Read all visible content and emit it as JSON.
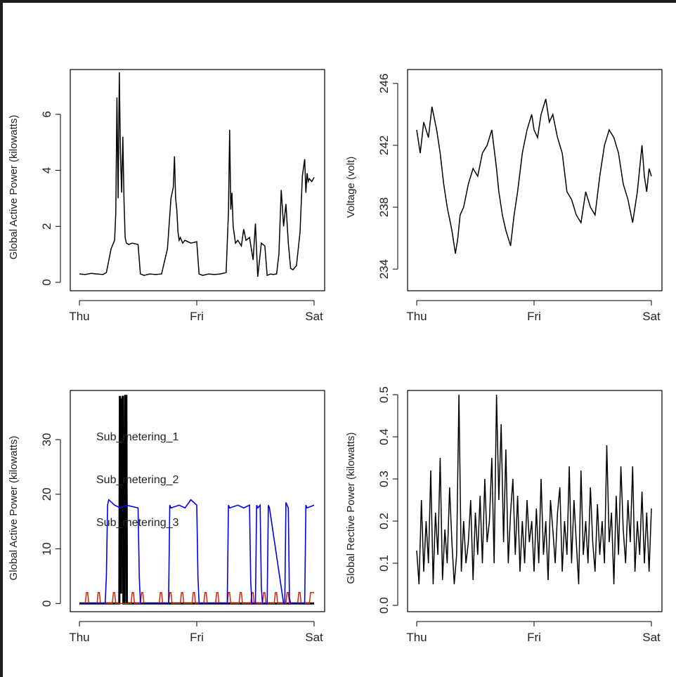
{
  "chart_data": [
    {
      "id": "p1",
      "type": "line",
      "title": "",
      "ylabel": "Global Active Power (kilowatts)",
      "xlabel": "",
      "x_ticks": [
        "Thu",
        "Fri",
        "Sat"
      ],
      "x_range": [
        0,
        2
      ],
      "ylim": [
        -0.3,
        7.6
      ],
      "y_ticks": [
        0,
        2,
        4,
        6
      ],
      "series": [
        {
          "name": "Global_active_power",
          "color": "#000000",
          "x": [
            0.0,
            0.05,
            0.1,
            0.15,
            0.2,
            0.23,
            0.27,
            0.3,
            0.31,
            0.32,
            0.33,
            0.34,
            0.35,
            0.36,
            0.37,
            0.38,
            0.39,
            0.4,
            0.42,
            0.45,
            0.5,
            0.52,
            0.55,
            0.6,
            0.65,
            0.7,
            0.75,
            0.78,
            0.8,
            0.81,
            0.82,
            0.83,
            0.84,
            0.85,
            0.86,
            0.88,
            0.9,
            0.95,
            1.0,
            1.02,
            1.05,
            1.1,
            1.15,
            1.2,
            1.25,
            1.27,
            1.28,
            1.29,
            1.3,
            1.31,
            1.33,
            1.35,
            1.38,
            1.4,
            1.42,
            1.45,
            1.48,
            1.5,
            1.52,
            1.55,
            1.58,
            1.6,
            1.63,
            1.65,
            1.68,
            1.7,
            1.72,
            1.74,
            1.76,
            1.78,
            1.8,
            1.82,
            1.85,
            1.88,
            1.9,
            1.92,
            1.93,
            1.94,
            1.95,
            1.96,
            1.98,
            2.0
          ],
          "y": [
            0.3,
            0.28,
            0.32,
            0.3,
            0.28,
            0.35,
            1.2,
            1.5,
            2.5,
            6.6,
            3.0,
            7.5,
            4.6,
            3.2,
            5.2,
            2.9,
            1.6,
            1.4,
            1.35,
            1.4,
            1.35,
            0.3,
            0.25,
            0.3,
            0.28,
            0.3,
            1.2,
            3.0,
            3.4,
            4.5,
            3.0,
            2.6,
            1.8,
            1.5,
            1.6,
            1.4,
            1.5,
            1.4,
            1.45,
            0.3,
            0.25,
            0.3,
            0.28,
            0.3,
            0.35,
            2.5,
            5.45,
            2.6,
            3.2,
            2.0,
            1.4,
            1.5,
            1.3,
            1.9,
            1.5,
            1.6,
            0.8,
            2.1,
            0.2,
            1.4,
            1.3,
            0.25,
            0.3,
            0.28,
            0.3,
            1.0,
            3.3,
            2.0,
            2.8,
            1.4,
            0.5,
            0.45,
            0.6,
            1.8,
            3.8,
            4.4,
            3.2,
            3.9,
            3.6,
            3.7,
            3.6,
            3.75
          ]
        }
      ]
    },
    {
      "id": "p2",
      "type": "line",
      "title": "",
      "ylabel": "Voltage (volt)",
      "xlabel": "",
      "x_ticks": [
        "Thu",
        "Fri",
        "Sat"
      ],
      "x_range": [
        0,
        2
      ],
      "ylim": [
        232.6,
        246.9
      ],
      "y_ticks": [
        234,
        238,
        242,
        246
      ],
      "series": [
        {
          "name": "Voltage",
          "color": "#000000",
          "x": [
            0.0,
            0.03,
            0.06,
            0.1,
            0.13,
            0.17,
            0.2,
            0.23,
            0.26,
            0.3,
            0.33,
            0.35,
            0.37,
            0.4,
            0.44,
            0.48,
            0.52,
            0.56,
            0.6,
            0.64,
            0.68,
            0.7,
            0.73,
            0.76,
            0.8,
            0.83,
            0.86,
            0.9,
            0.94,
            0.98,
            1.0,
            1.03,
            1.06,
            1.1,
            1.13,
            1.16,
            1.2,
            1.24,
            1.28,
            1.32,
            1.36,
            1.4,
            1.44,
            1.48,
            1.52,
            1.56,
            1.6,
            1.64,
            1.68,
            1.72,
            1.76,
            1.8,
            1.84,
            1.88,
            1.9,
            1.92,
            1.94,
            1.96,
            1.98,
            2.0
          ],
          "y": [
            243,
            241.5,
            243.5,
            242.5,
            244.5,
            243,
            241.5,
            239.5,
            238,
            236.5,
            235,
            236,
            237.5,
            238,
            239.5,
            240.5,
            240,
            241.5,
            242,
            243,
            240.5,
            239,
            237.5,
            236.5,
            235.5,
            237.5,
            239,
            241.5,
            243,
            244,
            243,
            242.5,
            244,
            245,
            243.5,
            244,
            242.5,
            241.5,
            239,
            238.5,
            237.5,
            237,
            239,
            238,
            237.5,
            240,
            242,
            243,
            242.5,
            241.5,
            239.5,
            238.5,
            237,
            239,
            240.5,
            242,
            240,
            239,
            240.5,
            240
          ]
        }
      ]
    },
    {
      "id": "p3",
      "type": "line",
      "title": "",
      "ylabel": "Global Active Power (kilowatts)",
      "xlabel": "",
      "x_ticks": [
        "Thu",
        "Fri",
        "Sat"
      ],
      "x_range": [
        0,
        2
      ],
      "ylim": [
        -1.5,
        39
      ],
      "y_ticks": [
        0,
        10,
        20,
        30
      ],
      "legend": [
        "Sub_metering_1",
        "Sub_metering_2",
        "Sub_metering_3"
      ],
      "series": [
        {
          "name": "Sub_metering_1",
          "color": "#000000",
          "x": [
            0.0,
            0.34,
            0.345,
            0.35,
            0.355,
            0.36,
            0.37,
            0.375,
            0.385,
            0.39,
            0.4,
            0.405,
            0.415,
            0.42,
            2.0
          ],
          "y": [
            0,
            0,
            38,
            2,
            2,
            37,
            38,
            0,
            0,
            38,
            38,
            0,
            0,
            0,
            0
          ]
        },
        {
          "name": "Sub_metering_2",
          "color": "#dd2200",
          "x": [
            0.0,
            0.05,
            0.06,
            0.07,
            0.08,
            0.15,
            0.16,
            0.17,
            0.18,
            0.28,
            0.29,
            0.3,
            0.31,
            0.44,
            0.45,
            0.46,
            0.47,
            0.52,
            0.53,
            0.54,
            0.55,
            0.68,
            0.69,
            0.7,
            0.71,
            0.76,
            0.77,
            0.78,
            0.79,
            0.86,
            0.87,
            0.88,
            0.89,
            0.96,
            0.97,
            0.98,
            0.99,
            1.06,
            1.07,
            1.08,
            1.09,
            1.16,
            1.17,
            1.18,
            1.19,
            1.26,
            1.27,
            1.28,
            1.29,
            1.36,
            1.37,
            1.38,
            1.39,
            1.46,
            1.47,
            1.48,
            1.49,
            1.56,
            1.57,
            1.58,
            1.59,
            1.66,
            1.67,
            1.68,
            1.69,
            1.76,
            1.77,
            1.78,
            1.79,
            1.86,
            1.87,
            1.88,
            1.89,
            1.96,
            1.97,
            1.98,
            2.0
          ],
          "y": [
            0,
            0,
            2,
            2,
            0,
            0,
            2,
            2,
            0,
            0,
            2,
            2,
            0,
            0,
            2,
            2,
            0,
            0,
            2,
            2,
            0,
            0,
            2,
            2,
            0,
            0,
            2,
            2,
            0,
            0,
            2,
            2,
            0,
            0,
            2,
            2,
            0,
            0,
            2,
            2,
            0,
            0,
            2,
            2,
            0,
            0,
            2,
            2,
            0,
            0,
            2,
            2,
            0,
            0,
            2,
            2,
            0,
            0,
            2,
            2,
            0,
            0,
            2,
            2,
            0,
            0,
            2,
            2,
            0,
            0,
            2,
            2,
            0,
            0,
            2,
            2,
            2
          ]
        },
        {
          "name": "Sub_metering_3",
          "color": "#0000ee",
          "x": [
            0.0,
            0.22,
            0.23,
            0.24,
            0.25,
            0.3,
            0.35,
            0.4,
            0.5,
            0.51,
            0.52,
            0.76,
            0.77,
            0.78,
            0.85,
            0.9,
            0.95,
            1.0,
            1.01,
            1.02,
            1.26,
            1.27,
            1.28,
            1.35,
            1.4,
            1.45,
            1.46,
            1.47,
            1.5,
            1.51,
            1.52,
            1.54,
            1.55,
            1.56,
            1.6,
            1.61,
            1.62,
            1.74,
            1.75,
            1.76,
            1.78,
            1.79,
            1.8,
            1.92,
            1.93,
            1.94,
            2.0
          ],
          "y": [
            0,
            0,
            5,
            18,
            19,
            18,
            17.5,
            18,
            17.5,
            5,
            0,
            0,
            18,
            17.5,
            18,
            17.5,
            19,
            18,
            5,
            0,
            0,
            18,
            17.5,
            18,
            17.5,
            18,
            4,
            0,
            0,
            18,
            17.5,
            18,
            3,
            0,
            0,
            18,
            17.5,
            0,
            0,
            18.5,
            17.5,
            1,
            0,
            0,
            18,
            17.5,
            18
          ]
        }
      ]
    },
    {
      "id": "p4",
      "type": "line",
      "title": "",
      "ylabel": "Global Rective Power (kilowatts)",
      "xlabel": "",
      "x_ticks": [
        "Thu",
        "Fri",
        "Sat"
      ],
      "x_range": [
        0,
        2
      ],
      "ylim": [
        -0.015,
        0.51
      ],
      "y_ticks": [
        0.0,
        0.1,
        0.2,
        0.3,
        0.4,
        0.5
      ],
      "series": [
        {
          "name": "Global_reactive_power",
          "color": "#000000",
          "x": [
            0.0,
            0.02,
            0.04,
            0.06,
            0.08,
            0.1,
            0.12,
            0.14,
            0.16,
            0.18,
            0.2,
            0.22,
            0.24,
            0.26,
            0.28,
            0.3,
            0.32,
            0.34,
            0.36,
            0.38,
            0.4,
            0.42,
            0.44,
            0.46,
            0.48,
            0.5,
            0.52,
            0.54,
            0.56,
            0.58,
            0.6,
            0.62,
            0.64,
            0.66,
            0.68,
            0.7,
            0.72,
            0.74,
            0.76,
            0.78,
            0.8,
            0.82,
            0.84,
            0.86,
            0.88,
            0.9,
            0.92,
            0.94,
            0.96,
            0.98,
            1.0,
            1.02,
            1.04,
            1.06,
            1.08,
            1.1,
            1.12,
            1.14,
            1.16,
            1.18,
            1.2,
            1.22,
            1.24,
            1.26,
            1.28,
            1.3,
            1.32,
            1.34,
            1.36,
            1.38,
            1.4,
            1.42,
            1.44,
            1.46,
            1.48,
            1.5,
            1.52,
            1.54,
            1.56,
            1.58,
            1.6,
            1.62,
            1.64,
            1.66,
            1.68,
            1.7,
            1.72,
            1.74,
            1.76,
            1.78,
            1.8,
            1.82,
            1.84,
            1.86,
            1.88,
            1.9,
            1.92,
            1.94,
            1.96,
            1.98,
            2.0
          ],
          "y": [
            0.13,
            0.05,
            0.25,
            0.08,
            0.2,
            0.1,
            0.32,
            0.05,
            0.22,
            0.12,
            0.35,
            0.06,
            0.18,
            0.1,
            0.28,
            0.15,
            0.05,
            0.12,
            0.5,
            0.08,
            0.2,
            0.1,
            0.15,
            0.25,
            0.06,
            0.22,
            0.12,
            0.26,
            0.1,
            0.3,
            0.15,
            0.2,
            0.35,
            0.1,
            0.5,
            0.25,
            0.43,
            0.15,
            0.37,
            0.1,
            0.22,
            0.3,
            0.12,
            0.26,
            0.08,
            0.2,
            0.1,
            0.25,
            0.15,
            0.2,
            0.08,
            0.23,
            0.1,
            0.3,
            0.12,
            0.2,
            0.06,
            0.25,
            0.18,
            0.1,
            0.22,
            0.28,
            0.08,
            0.2,
            0.12,
            0.33,
            0.1,
            0.25,
            0.15,
            0.05,
            0.32,
            0.12,
            0.2,
            0.1,
            0.28,
            0.15,
            0.08,
            0.24,
            0.12,
            0.2,
            0.1,
            0.38,
            0.15,
            0.22,
            0.05,
            0.26,
            0.12,
            0.33,
            0.18,
            0.1,
            0.25,
            0.15,
            0.33,
            0.08,
            0.2,
            0.12,
            0.27,
            0.1,
            0.22,
            0.08,
            0.23
          ]
        }
      ]
    }
  ]
}
